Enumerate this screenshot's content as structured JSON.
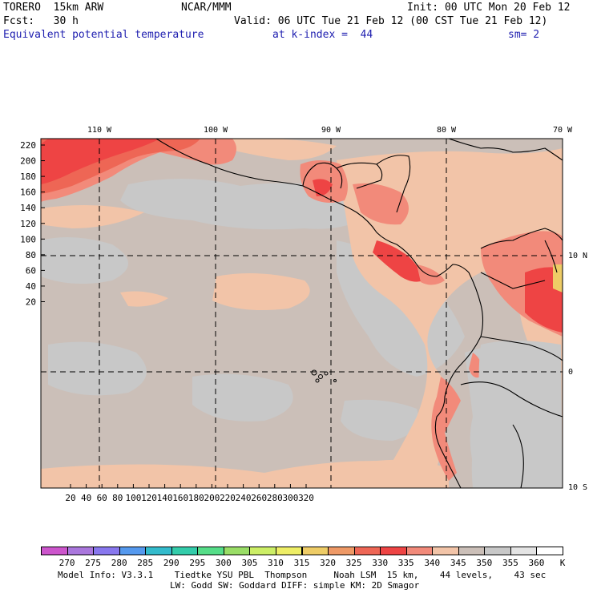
{
  "header": {
    "model": "TORERO",
    "resolution": "15km ARW",
    "org": "NCAR/MMM",
    "init": "Init: 00 UTC Mon 20 Feb 12",
    "fcst_label": "Fcst:",
    "fcst_value": "30 h",
    "valid": "Valid: 06 UTC Tue 21 Feb 12 (00 CST Tue 21 Feb 12)",
    "field": "Equivalent potential temperature",
    "level": "at k-index =  44",
    "smooth": "sm= 2"
  },
  "axes": {
    "lon_labels": [
      "110 W",
      "100 W",
      "90 W",
      "80 W",
      "70 W"
    ],
    "lat_labels": [
      "10 N",
      "0",
      "10 S"
    ],
    "y_ticks": [
      "220",
      "200",
      "180",
      "160",
      "140",
      "120",
      "100",
      "80",
      "60",
      "40",
      "20"
    ],
    "x_ticks": [
      "20",
      "40",
      "60",
      "80",
      "100",
      "120",
      "140",
      "160",
      "180",
      "200",
      "220",
      "240",
      "260",
      "280",
      "300",
      "320"
    ]
  },
  "colorbar": {
    "unit": "K",
    "labels": [
      "270",
      "275",
      "280",
      "285",
      "290",
      "295",
      "300",
      "305",
      "310",
      "315",
      "320",
      "325",
      "330",
      "335",
      "340",
      "345",
      "350",
      "355",
      "360"
    ],
    "colors": [
      "#cc55cc",
      "#aa77dd",
      "#8877ee",
      "#5599ee",
      "#33bbcc",
      "#33ccaa",
      "#55dd88",
      "#99dd66",
      "#ccee66",
      "#eeee66",
      "#eecc66",
      "#ee9966",
      "#ee6655",
      "#ee4444",
      "#f28a7a",
      "#f2c4a8",
      "#cbbfb8",
      "#c8c8c8",
      "#e4e4e4",
      "#ffffff"
    ]
  },
  "footer": {
    "line1": "Model Info: V3.3.1    Tiedtke YSU PBL  Thompson     Noah LSM  15 km,    44 levels,    43 sec",
    "line2": "LW: Godd SW: Goddard DIFF: simple KM: 2D Smagor"
  }
}
